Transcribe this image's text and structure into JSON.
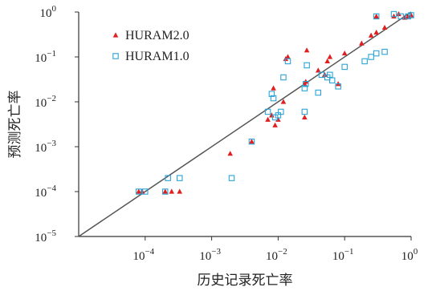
{
  "chart_data": {
    "type": "scatter",
    "xlabel": "历史记录死亡率",
    "ylabel": "预测死亡率",
    "xscale": "log",
    "yscale": "log",
    "xlim": [
      1e-05,
      1
    ],
    "ylim": [
      1e-05,
      1
    ],
    "x_ticks": [
      {
        "value": 0.0001,
        "base": "10",
        "exp": "−4"
      },
      {
        "value": 0.001,
        "base": "10",
        "exp": "−3"
      },
      {
        "value": 0.01,
        "base": "10",
        "exp": "−2"
      },
      {
        "value": 0.1,
        "base": "10",
        "exp": "−1"
      },
      {
        "value": 1,
        "base": "10",
        "exp": "0"
      }
    ],
    "y_ticks": [
      {
        "value": 1e-05,
        "base": "10",
        "exp": "−5"
      },
      {
        "value": 0.0001,
        "base": "10",
        "exp": "−4"
      },
      {
        "value": 0.001,
        "base": "10",
        "exp": "−3"
      },
      {
        "value": 0.01,
        "base": "10",
        "exp": "−2"
      },
      {
        "value": 0.1,
        "base": "10",
        "exp": "−1"
      },
      {
        "value": 1,
        "base": "10",
        "exp": "0"
      }
    ],
    "reference_line": {
      "from": [
        1e-05,
        1e-05
      ],
      "to": [
        1,
        1
      ],
      "color": "#555555"
    },
    "grid": false,
    "legend_position": "top-left",
    "series": [
      {
        "name": "HURAM2.0",
        "marker": "triangle",
        "color": "#e02020",
        "points": [
          [
            8e-05,
            0.0001
          ],
          [
            9e-05,
            0.0001
          ],
          [
            0.0002,
            0.0001
          ],
          [
            0.00025,
            0.0001
          ],
          [
            0.00033,
            0.0001
          ],
          [
            0.0019,
            0.0007
          ],
          [
            0.004,
            0.0013
          ],
          [
            0.007,
            0.004
          ],
          [
            0.008,
            0.005
          ],
          [
            0.0085,
            0.02
          ],
          [
            0.009,
            0.003
          ],
          [
            0.01,
            0.004
          ],
          [
            0.012,
            0.01
          ],
          [
            0.013,
            0.09
          ],
          [
            0.014,
            0.1
          ],
          [
            0.025,
            0.0045
          ],
          [
            0.025,
            0.025
          ],
          [
            0.026,
            0.028
          ],
          [
            0.027,
            0.14
          ],
          [
            0.04,
            0.05
          ],
          [
            0.05,
            0.04
          ],
          [
            0.055,
            0.08
          ],
          [
            0.06,
            0.1
          ],
          [
            0.08,
            0.025
          ],
          [
            0.1,
            0.12
          ],
          [
            0.18,
            0.2
          ],
          [
            0.25,
            0.3
          ],
          [
            0.3,
            0.35
          ],
          [
            0.3,
            0.8
          ],
          [
            0.4,
            0.45
          ],
          [
            0.55,
            0.8
          ],
          [
            0.65,
            0.9
          ],
          [
            0.8,
            0.75
          ],
          [
            0.9,
            0.8
          ],
          [
            1.0,
            0.85
          ]
        ]
      },
      {
        "name": "HURAM1.0",
        "marker": "square",
        "color": "#2aa4d6",
        "points": [
          [
            8e-05,
            0.0001
          ],
          [
            0.0001,
            0.0001
          ],
          [
            0.0002,
            0.0001
          ],
          [
            0.00022,
            0.0002
          ],
          [
            0.00033,
            0.0002
          ],
          [
            0.002,
            0.0002
          ],
          [
            0.004,
            0.0013
          ],
          [
            0.007,
            0.006
          ],
          [
            0.008,
            0.015
          ],
          [
            0.0085,
            0.012
          ],
          [
            0.009,
            0.0045
          ],
          [
            0.01,
            0.005
          ],
          [
            0.011,
            0.006
          ],
          [
            0.012,
            0.035
          ],
          [
            0.014,
            0.08
          ],
          [
            0.025,
            0.006
          ],
          [
            0.025,
            0.02
          ],
          [
            0.026,
            0.025
          ],
          [
            0.027,
            0.065
          ],
          [
            0.04,
            0.016
          ],
          [
            0.045,
            0.04
          ],
          [
            0.055,
            0.035
          ],
          [
            0.06,
            0.04
          ],
          [
            0.065,
            0.03
          ],
          [
            0.08,
            0.022
          ],
          [
            0.1,
            0.06
          ],
          [
            0.2,
            0.08
          ],
          [
            0.25,
            0.1
          ],
          [
            0.3,
            0.12
          ],
          [
            0.3,
            0.8
          ],
          [
            0.4,
            0.13
          ],
          [
            0.55,
            0.9
          ],
          [
            0.7,
            0.8
          ],
          [
            0.9,
            0.8
          ],
          [
            1.0,
            0.85
          ]
        ]
      }
    ]
  }
}
